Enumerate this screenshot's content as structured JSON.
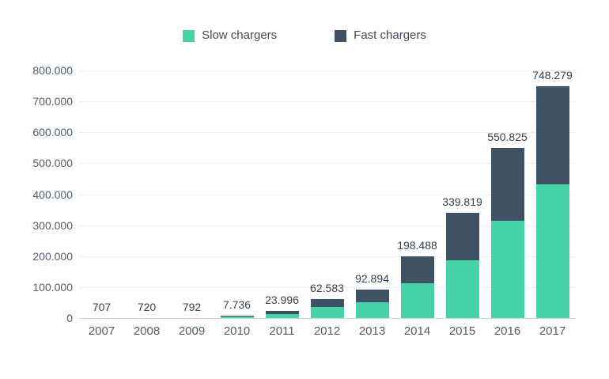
{
  "legend": {
    "items": [
      {
        "label": "Slow chargers",
        "color": "#45d3a7"
      },
      {
        "label": "Fast chargers",
        "color": "#3f5264"
      }
    ]
  },
  "chart_data": {
    "type": "bar",
    "stacked": true,
    "title": "",
    "categories": [
      "2007",
      "2008",
      "2009",
      "2010",
      "2011",
      "2012",
      "2013",
      "2014",
      "2015",
      "2016",
      "2017"
    ],
    "series": [
      {
        "name": "Slow chargers",
        "color": "#45d3a7",
        "values": [
          707,
          720,
          792,
          4300,
          14000,
          35000,
          50000,
          113000,
          186000,
          315000,
          431500
        ]
      },
      {
        "name": "Fast chargers",
        "color": "#3f5264",
        "values": [
          0,
          0,
          0,
          3436,
          9996,
          27583,
          42894,
          85488,
          153819,
          235825,
          316779
        ]
      }
    ],
    "totals": [
      707,
      720,
      792,
      7736,
      23996,
      62583,
      92894,
      198488,
      339819,
      550825,
      748279
    ],
    "total_labels": [
      "707",
      "720",
      "792",
      "7.736",
      "23.996",
      "62.583",
      "92.894",
      "198.488",
      "339.819",
      "550.825",
      "748.279"
    ],
    "xlabel": "",
    "ylabel": "",
    "ylim": [
      0,
      800000
    ],
    "ytick_labels": [
      "0",
      "100.000",
      "200.000",
      "300.000",
      "400.000",
      "500.000",
      "600.000",
      "700.000",
      "800.000"
    ],
    "grid": true,
    "legend_position": "top",
    "colors": {
      "background": "#ffffff",
      "gridline": "#d9e2e9",
      "axis_line": "#cfd7dd",
      "tick_text": "#4d5e6d",
      "value_text": "#33424f"
    }
  }
}
